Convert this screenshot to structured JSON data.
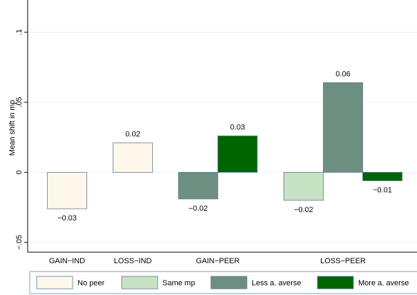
{
  "chart_data": {
    "type": "bar",
    "y_label": "Mean shift in mp",
    "categories": [
      "GAIN−IND",
      "LOSS−IND",
      "GAIN−PEER",
      "LOSS−PEER"
    ],
    "series": [
      {
        "name": "No peer",
        "color": "#fdf8ea",
        "values": [
          -0.026,
          0.021,
          null,
          null
        ],
        "value_labels": [
          "−0.03",
          "0.02",
          null,
          null
        ]
      },
      {
        "name": "Same mp",
        "color": "#c7e3c3",
        "values": [
          null,
          null,
          null,
          -0.02
        ],
        "value_labels": [
          null,
          null,
          null,
          "−0.02"
        ]
      },
      {
        "name": "Less a. averse",
        "color": "#6d8f81",
        "values": [
          null,
          null,
          -0.019,
          0.064
        ],
        "value_labels": [
          null,
          null,
          "−0.02",
          "0.06"
        ]
      },
      {
        "name": "More a. averse",
        "color": "#006400",
        "values": [
          null,
          null,
          0.026,
          -0.006
        ],
        "value_labels": [
          null,
          null,
          "0.03",
          "−0.01"
        ]
      }
    ],
    "ylim": [
      -0.057,
      0.123
    ],
    "yticks": [
      {
        "value": -0.05,
        "label": "−.05"
      },
      0,
      {
        "value": 0.05,
        "label": ".05"
      },
      {
        "value": 0.1,
        "label": ".1"
      }
    ],
    "grid": true
  }
}
